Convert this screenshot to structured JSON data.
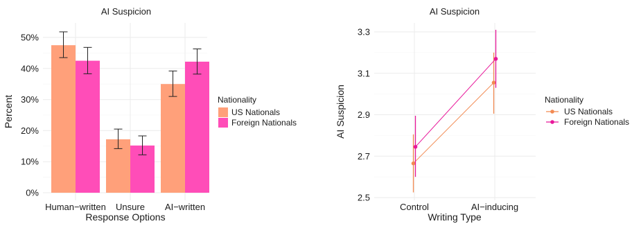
{
  "chart_data": [
    {
      "type": "bar",
      "title": "AI Suspicion",
      "xlabel": "Response Options",
      "ylabel": "Percent",
      "categories": [
        "Human−written",
        "Unsure",
        "AI−written"
      ],
      "ylim": [
        0,
        52
      ],
      "yticks": [
        0,
        10,
        20,
        30,
        40,
        50
      ],
      "ytick_labels": [
        "0%",
        "10%",
        "20%",
        "30%",
        "40%",
        "50%"
      ],
      "legend_title": "Nationality",
      "legend_position": "right",
      "grid": true,
      "series": [
        {
          "name": "US Nationals",
          "color": "#ffa07a",
          "values": [
            47.5,
            17.2,
            35.0
          ],
          "err_low": [
            43.5,
            14.2,
            31.0
          ],
          "err_high": [
            51.8,
            20.5,
            39.2
          ]
        },
        {
          "name": "Foreign Nationals",
          "color": "#ff4db8",
          "values": [
            42.5,
            15.2,
            42.2
          ],
          "err_low": [
            38.3,
            12.2,
            38.2
          ],
          "err_high": [
            46.8,
            18.3,
            46.3
          ]
        }
      ]
    },
    {
      "type": "line",
      "title": "AI Suspicion",
      "xlabel": "Writing Type",
      "ylabel": "AI Suspicion",
      "categories": [
        "Control",
        "AI−inducing"
      ],
      "ylim": [
        2.5,
        3.35
      ],
      "yticks": [
        2.5,
        2.7,
        2.9,
        3.1,
        3.3
      ],
      "ytick_labels": [
        "2.5",
        "2.7",
        "2.9",
        "3.1",
        "3.3"
      ],
      "legend_title": "Nationality",
      "legend_position": "right",
      "grid": true,
      "series": [
        {
          "name": "US Nationals",
          "color": "#f28a52",
          "values": [
            2.665,
            3.055
          ],
          "err_low": [
            2.525,
            2.905
          ],
          "err_high": [
            2.805,
            3.2
          ]
        },
        {
          "name": "Foreign Nationals",
          "color": "#e8179a",
          "values": [
            2.745,
            3.17
          ],
          "err_low": [
            2.6,
            3.03
          ],
          "err_high": [
            2.895,
            3.31
          ]
        }
      ]
    }
  ]
}
